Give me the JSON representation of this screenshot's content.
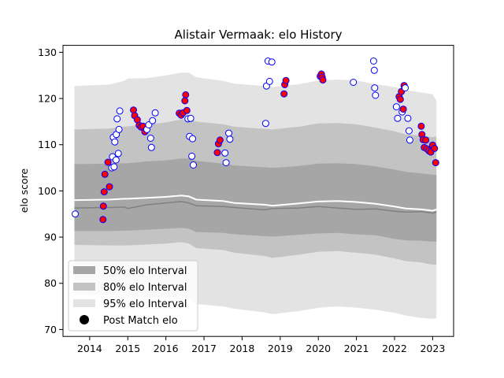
{
  "chart_data": {
    "type": "scatter",
    "title": "Alistair Vermaak: elo History",
    "xlabel": "",
    "ylabel": "elo score",
    "xlim": [
      2013.3,
      2023.55
    ],
    "ylim": [
      68.5,
      131.5
    ],
    "xticks": [
      2014,
      2015,
      2016,
      2017,
      2018,
      2019,
      2020,
      2021,
      2022,
      2023
    ],
    "yticks": [
      70,
      80,
      90,
      100,
      110,
      120,
      130
    ],
    "grid": false,
    "legend_position": "lower-left",
    "legend": [
      {
        "label": "50% elo Interval",
        "color": "#a6a6a6"
      },
      {
        "label": "80% elo Interval",
        "color": "#c3c3c3"
      },
      {
        "label": "95% elo Interval",
        "color": "#e3e3e3"
      },
      {
        "label": "Post Match elo",
        "color": "#000000"
      }
    ],
    "colors": {
      "band95": "#e3e3e3",
      "band80": "#c3c3c3",
      "band50": "#a6a6a6",
      "mean_line": "#ffffff",
      "median_line": "#808080",
      "marker_edge": "#0000ff",
      "win_fill": "#ff0000",
      "loss_fill": "#ffffff"
    },
    "intervals": {
      "x": [
        2013.6,
        2014.5,
        2014.9,
        2015.0,
        2015.5,
        2016.0,
        2016.4,
        2016.6,
        2016.8,
        2017.5,
        2017.8,
        2018.6,
        2018.8,
        2019.5,
        2020.0,
        2020.5,
        2021.0,
        2021.5,
        2022.0,
        2022.3,
        2022.7,
        2023.0,
        2023.1
      ],
      "mean": [
        98.0,
        98.1,
        98.3,
        98.3,
        98.5,
        98.7,
        99.0,
        98.8,
        98.1,
        97.8,
        97.4,
        97.0,
        96.8,
        97.3,
        97.7,
        97.8,
        97.6,
        97.2,
        96.6,
        96.2,
        96.0,
        95.7,
        96.0
      ],
      "median": [
        96.3,
        96.4,
        96.5,
        96.2,
        97.0,
        97.4,
        97.7,
        97.4,
        96.8,
        96.6,
        96.4,
        95.9,
        96.2,
        96.3,
        96.6,
        96.3,
        96.0,
        96.1,
        95.6,
        95.4,
        95.5,
        95.2,
        95.4
      ],
      "p50_low": [
        91.3,
        91.3,
        91.4,
        91.4,
        91.6,
        91.8,
        92.0,
        91.8,
        91.1,
        90.9,
        90.6,
        90.2,
        90.1,
        90.5,
        90.8,
        90.9,
        90.6,
        90.4,
        89.6,
        89.3,
        89.2,
        89.0,
        89.0
      ],
      "p50_high": [
        105.8,
        105.9,
        106.0,
        106.0,
        106.4,
        106.6,
        107.0,
        107.0,
        106.5,
        105.9,
        105.5,
        105.1,
        105.0,
        105.4,
        105.9,
        106.0,
        105.8,
        105.3,
        104.6,
        104.1,
        103.8,
        103.5,
        103.5
      ],
      "p80_low": [
        88.3,
        88.2,
        88.2,
        88.2,
        88.4,
        88.6,
        88.9,
        88.6,
        87.6,
        87.2,
        86.6,
        85.9,
        85.5,
        86.2,
        86.8,
        87.0,
        86.6,
        86.2,
        85.4,
        84.8,
        84.5,
        84.0,
        84.1
      ],
      "p80_high": [
        113.3,
        113.5,
        113.9,
        114.0,
        114.4,
        114.8,
        115.5,
        115.5,
        115.0,
        114.4,
        113.9,
        113.4,
        113.3,
        113.9,
        114.6,
        114.7,
        114.4,
        113.7,
        112.9,
        112.2,
        112.0,
        111.6,
        111.8
      ],
      "p95_low": [
        77.6,
        77.4,
        77.2,
        77.0,
        77.0,
        77.0,
        77.2,
        76.8,
        75.5,
        75.0,
        74.5,
        73.7,
        73.3,
        74.0,
        74.7,
        75.0,
        74.7,
        74.3,
        73.6,
        73.0,
        72.5,
        72.3,
        72.4
      ],
      "p95_high": [
        122.7,
        123.0,
        123.8,
        124.3,
        124.4,
        125.0,
        125.6,
        125.6,
        124.6,
        123.8,
        123.2,
        122.7,
        122.5,
        123.1,
        123.9,
        124.1,
        123.9,
        123.1,
        122.5,
        121.8,
        121.3,
        120.9,
        119.5
      ]
    },
    "points": [
      {
        "x": 2013.62,
        "y": 95.0,
        "win": false
      },
      {
        "x": 2014.35,
        "y": 93.8,
        "win": true
      },
      {
        "x": 2014.36,
        "y": 96.7,
        "win": true
      },
      {
        "x": 2014.38,
        "y": 99.8,
        "win": true
      },
      {
        "x": 2014.4,
        "y": 103.6,
        "win": true
      },
      {
        "x": 2014.48,
        "y": 106.2,
        "win": true
      },
      {
        "x": 2014.52,
        "y": 100.9,
        "win": true
      },
      {
        "x": 2014.58,
        "y": 105.0,
        "win": false
      },
      {
        "x": 2014.6,
        "y": 107.4,
        "win": false
      },
      {
        "x": 2014.62,
        "y": 111.6,
        "win": false
      },
      {
        "x": 2014.64,
        "y": 105.2,
        "win": false
      },
      {
        "x": 2014.66,
        "y": 110.6,
        "win": false
      },
      {
        "x": 2014.69,
        "y": 106.7,
        "win": false
      },
      {
        "x": 2014.7,
        "y": 112.2,
        "win": false
      },
      {
        "x": 2014.72,
        "y": 115.6,
        "win": false
      },
      {
        "x": 2014.75,
        "y": 108.1,
        "win": false
      },
      {
        "x": 2014.77,
        "y": 113.3,
        "win": false
      },
      {
        "x": 2014.79,
        "y": 117.3,
        "win": false
      },
      {
        "x": 2015.15,
        "y": 117.5,
        "win": true
      },
      {
        "x": 2015.18,
        "y": 116.3,
        "win": true
      },
      {
        "x": 2015.25,
        "y": 115.4,
        "win": true
      },
      {
        "x": 2015.3,
        "y": 114.2,
        "win": true
      },
      {
        "x": 2015.35,
        "y": 113.8,
        "win": true
      },
      {
        "x": 2015.4,
        "y": 114.0,
        "win": true
      },
      {
        "x": 2015.45,
        "y": 112.8,
        "win": true
      },
      {
        "x": 2015.5,
        "y": 113.3,
        "win": false
      },
      {
        "x": 2015.55,
        "y": 114.3,
        "win": false
      },
      {
        "x": 2015.6,
        "y": 111.4,
        "win": false
      },
      {
        "x": 2015.62,
        "y": 109.4,
        "win": false
      },
      {
        "x": 2015.65,
        "y": 115.2,
        "win": false
      },
      {
        "x": 2015.72,
        "y": 116.9,
        "win": false
      },
      {
        "x": 2016.35,
        "y": 116.8,
        "win": true
      },
      {
        "x": 2016.4,
        "y": 116.4,
        "win": true
      },
      {
        "x": 2016.45,
        "y": 116.9,
        "win": true
      },
      {
        "x": 2016.5,
        "y": 119.5,
        "win": true
      },
      {
        "x": 2016.52,
        "y": 120.8,
        "win": true
      },
      {
        "x": 2016.55,
        "y": 117.4,
        "win": true
      },
      {
        "x": 2016.58,
        "y": 115.6,
        "win": false
      },
      {
        "x": 2016.62,
        "y": 111.8,
        "win": false
      },
      {
        "x": 2016.65,
        "y": 115.7,
        "win": false
      },
      {
        "x": 2016.68,
        "y": 107.5,
        "win": false
      },
      {
        "x": 2016.7,
        "y": 111.3,
        "win": false
      },
      {
        "x": 2016.72,
        "y": 105.6,
        "win": false
      },
      {
        "x": 2017.35,
        "y": 108.3,
        "win": true
      },
      {
        "x": 2017.38,
        "y": 110.2,
        "win": true
      },
      {
        "x": 2017.42,
        "y": 111.0,
        "win": true
      },
      {
        "x": 2017.55,
        "y": 108.2,
        "win": false
      },
      {
        "x": 2017.58,
        "y": 106.1,
        "win": false
      },
      {
        "x": 2017.65,
        "y": 112.5,
        "win": false
      },
      {
        "x": 2017.68,
        "y": 111.2,
        "win": false
      },
      {
        "x": 2018.62,
        "y": 114.6,
        "win": false
      },
      {
        "x": 2018.64,
        "y": 122.7,
        "win": false
      },
      {
        "x": 2018.68,
        "y": 128.1,
        "win": false
      },
      {
        "x": 2018.72,
        "y": 123.7,
        "win": false
      },
      {
        "x": 2018.78,
        "y": 127.9,
        "win": false
      },
      {
        "x": 2019.1,
        "y": 121.0,
        "win": true
      },
      {
        "x": 2019.12,
        "y": 123.0,
        "win": true
      },
      {
        "x": 2019.15,
        "y": 123.9,
        "win": true
      },
      {
        "x": 2020.05,
        "y": 124.8,
        "win": true
      },
      {
        "x": 2020.08,
        "y": 125.3,
        "win": true
      },
      {
        "x": 2020.1,
        "y": 124.6,
        "win": true
      },
      {
        "x": 2020.12,
        "y": 124.0,
        "win": true
      },
      {
        "x": 2020.92,
        "y": 123.5,
        "win": false
      },
      {
        "x": 2021.45,
        "y": 128.1,
        "win": false
      },
      {
        "x": 2021.47,
        "y": 126.1,
        "win": false
      },
      {
        "x": 2021.48,
        "y": 122.3,
        "win": false
      },
      {
        "x": 2021.5,
        "y": 120.7,
        "win": false
      },
      {
        "x": 2022.05,
        "y": 118.2,
        "win": false
      },
      {
        "x": 2022.08,
        "y": 115.7,
        "win": false
      },
      {
        "x": 2022.12,
        "y": 120.4,
        "win": true
      },
      {
        "x": 2022.15,
        "y": 119.8,
        "win": true
      },
      {
        "x": 2022.18,
        "y": 121.5,
        "win": true
      },
      {
        "x": 2022.2,
        "y": 117.1,
        "win": false
      },
      {
        "x": 2022.23,
        "y": 117.7,
        "win": true
      },
      {
        "x": 2022.25,
        "y": 122.8,
        "win": true
      },
      {
        "x": 2022.28,
        "y": 122.3,
        "win": false
      },
      {
        "x": 2022.35,
        "y": 115.7,
        "win": false
      },
      {
        "x": 2022.38,
        "y": 113.0,
        "win": false
      },
      {
        "x": 2022.4,
        "y": 111.0,
        "win": false
      },
      {
        "x": 2022.7,
        "y": 114.0,
        "win": true
      },
      {
        "x": 2022.72,
        "y": 112.2,
        "win": true
      },
      {
        "x": 2022.75,
        "y": 111.1,
        "win": true
      },
      {
        "x": 2022.78,
        "y": 109.4,
        "win": true
      },
      {
        "x": 2022.82,
        "y": 111.0,
        "win": true
      },
      {
        "x": 2022.85,
        "y": 109.1,
        "win": true
      },
      {
        "x": 2022.9,
        "y": 108.7,
        "win": true
      },
      {
        "x": 2022.95,
        "y": 108.4,
        "win": true
      },
      {
        "x": 2023.0,
        "y": 109.9,
        "win": true
      },
      {
        "x": 2023.05,
        "y": 109.2,
        "win": true
      },
      {
        "x": 2023.08,
        "y": 106.1,
        "win": true
      }
    ]
  }
}
